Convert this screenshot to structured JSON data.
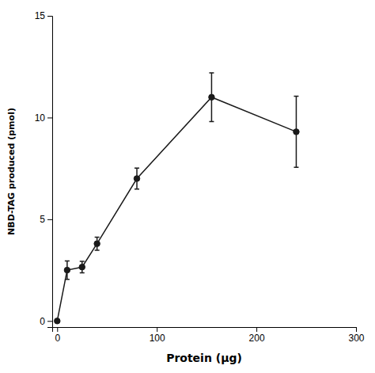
{
  "chart_data": {
    "type": "line",
    "xlabel": "Protein (μg)",
    "ylabel": "NBD-TAG produced (pmol)",
    "x": [
      0,
      10,
      25,
      40,
      80,
      155,
      240
    ],
    "values": [
      0.0,
      2.5,
      2.65,
      3.8,
      7.0,
      11.0,
      9.3
    ],
    "errors": [
      0.0,
      0.45,
      0.28,
      0.32,
      0.52,
      1.2,
      1.75
    ],
    "color": "#1a1a1a",
    "marker": "circle",
    "line_style": "solid",
    "grid": false,
    "xlim": [
      -5,
      300
    ],
    "ylim": [
      -0.3,
      15
    ],
    "xticks": [
      0,
      100,
      200,
      300
    ],
    "yticks": [
      0,
      5,
      10,
      15
    ]
  }
}
